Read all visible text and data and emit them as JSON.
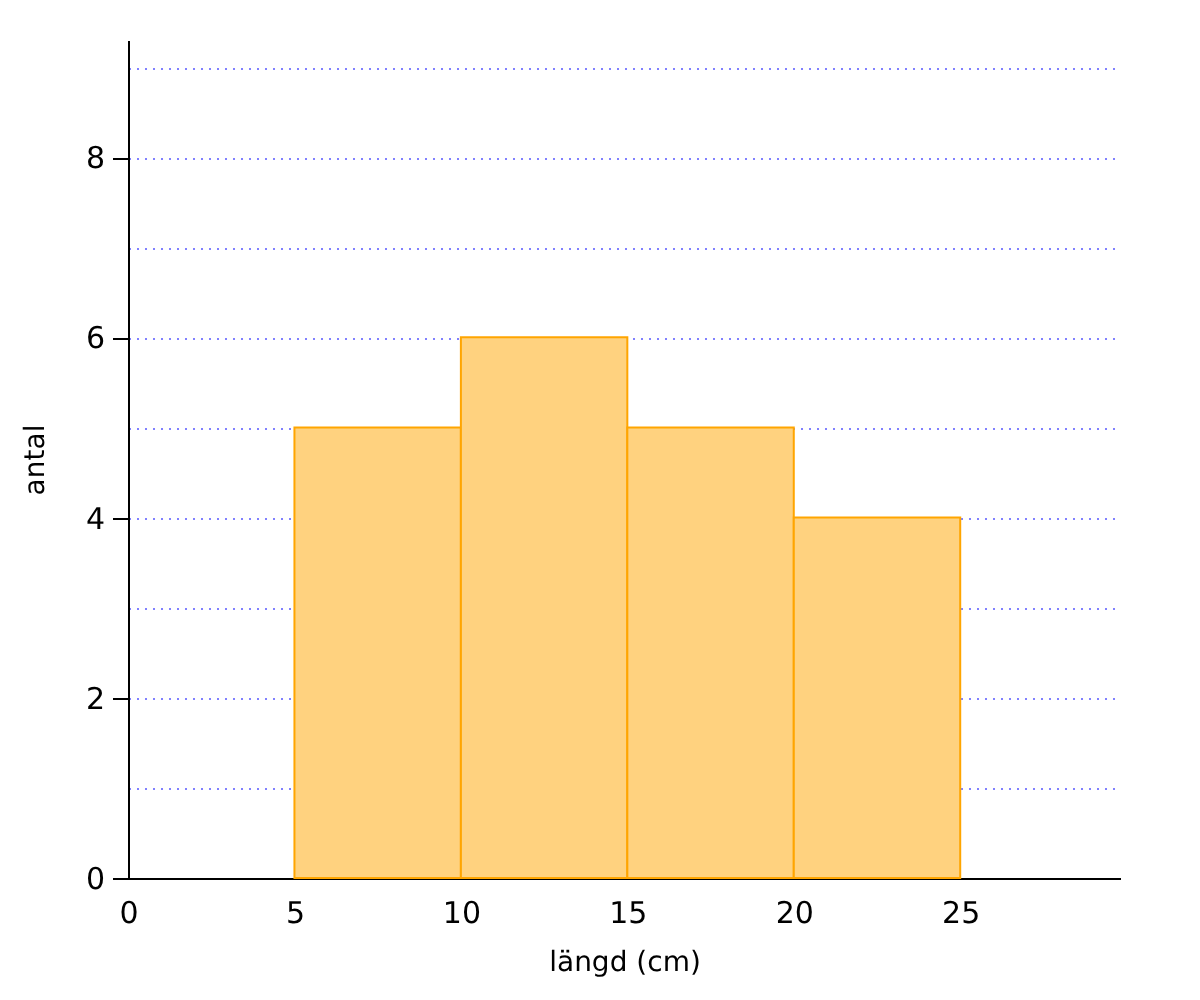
{
  "chart_data": {
    "type": "histogram",
    "xlabel": "längd (cm)",
    "ylabel": "antal",
    "bins": [
      5,
      10,
      15,
      20,
      25
    ],
    "values": [
      5,
      6,
      5,
      4
    ],
    "color": "#ffd27f",
    "xlim": [
      0,
      29.8
    ],
    "xticks": [
      0,
      5,
      10,
      15,
      20,
      25
    ],
    "ylim": [
      0,
      9.3
    ],
    "yticks": [
      0,
      {
        "value": 1,
        "label": null
      },
      2,
      {
        "value": 3,
        "label": null
      },
      4,
      {
        "value": 5,
        "label": null
      },
      6,
      {
        "value": 7,
        "label": null
      },
      8,
      {
        "value": 9,
        "label": null
      }
    ],
    "grid": "y"
  }
}
